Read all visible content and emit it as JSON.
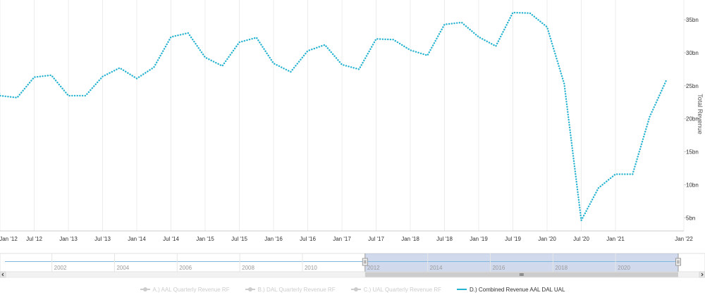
{
  "chart_data": {
    "type": "line",
    "y_axis_title": "Total Revenue",
    "y_ticks": [
      {
        "value": 5,
        "label": "5bn"
      },
      {
        "value": 10,
        "label": "10bn"
      },
      {
        "value": 15,
        "label": "15bn"
      },
      {
        "value": 20,
        "label": "20bn"
      },
      {
        "value": 25,
        "label": "25bn"
      },
      {
        "value": 30,
        "label": "30bn"
      },
      {
        "value": 35,
        "label": "35bn"
      }
    ],
    "x_ticks": [
      "Jan '12",
      "Jul '12",
      "Jan '13",
      "Jul '13",
      "Jan '14",
      "Jul '14",
      "Jan '15",
      "Jul '15",
      "Jan '16",
      "Jul '16",
      "Jan '17",
      "Jul '17",
      "Jan '18",
      "Jul '18",
      "Jan '19",
      "Jul '19",
      "Jan '20",
      "Jul '20",
      "Jan '21",
      "Jan '22"
    ],
    "x_range": [
      "2012-01",
      "2022-01"
    ],
    "ylim": [
      3,
      38
    ],
    "grid": true,
    "series": [
      {
        "name": "D.) Combined Revenue AAL DAL UAL",
        "color": "#26b3d1",
        "style": "dotted",
        "x": [
          "2011-12",
          "2012-01",
          "2012-04",
          "2012-07",
          "2012-10",
          "2013-01",
          "2013-04",
          "2013-07",
          "2013-10",
          "2014-01",
          "2014-04",
          "2014-07",
          "2014-10",
          "2015-01",
          "2015-04",
          "2015-07",
          "2015-10",
          "2016-01",
          "2016-04",
          "2016-07",
          "2016-10",
          "2017-01",
          "2017-04",
          "2017-07",
          "2017-10",
          "2018-01",
          "2018-04",
          "2018-07",
          "2018-10",
          "2019-01",
          "2019-04",
          "2019-07",
          "2019-10",
          "2020-01",
          "2020-04",
          "2020-07",
          "2020-10",
          "2021-01",
          "2021-04",
          "2021-07",
          "2021-10"
        ],
        "values": [
          26.5,
          23.5,
          23.2,
          26.3,
          26.6,
          23.5,
          23.5,
          26.4,
          27.7,
          26.1,
          27.8,
          32.4,
          33.0,
          29.3,
          28.0,
          31.6,
          32.3,
          28.4,
          27.1,
          30.3,
          31.2,
          28.2,
          27.5,
          32.1,
          32.0,
          30.4,
          29.6,
          34.3,
          34.6,
          32.4,
          31.0,
          36.1,
          36.0,
          33.9,
          25.3,
          4.6,
          9.5,
          11.6,
          11.6,
          20.3,
          26.0
        ]
      }
    ],
    "navigator": {
      "year_labels": [
        "2002",
        "2004",
        "2006",
        "2008",
        "2010",
        "2012",
        "2014",
        "2016",
        "2018",
        "2020"
      ],
      "year_range": [
        "2000-07",
        "2022-01"
      ],
      "selected_range": [
        "2012-01",
        "2022-01"
      ]
    },
    "legend": [
      {
        "label": "A.) AAL Quarterly Revenue RF",
        "visible": false,
        "color": "#cccccc"
      },
      {
        "label": "B.) DAL Quarterly Revenue RF",
        "visible": false,
        "color": "#cccccc"
      },
      {
        "label": "C.) UAL Quarterly Revenue RF",
        "visible": false,
        "color": "#cccccc"
      },
      {
        "label": "D.) Combined Revenue AAL DAL UAL",
        "visible": true,
        "color": "#26b3d1"
      }
    ]
  }
}
